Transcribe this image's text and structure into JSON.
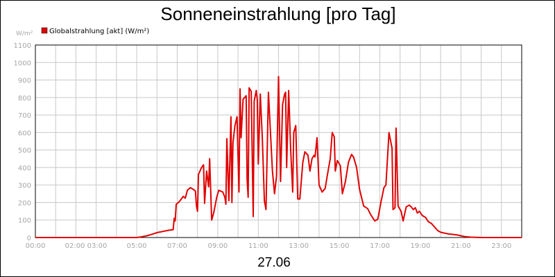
{
  "chart_data": {
    "type": "line",
    "title": "Sonneneinstrahlung [pro Tag]",
    "date_label": "27.06",
    "y_unit_label": "W/m²",
    "series": [
      {
        "name": "Globalstrahlung [akt] (W/m²)",
        "color": "#e00000",
        "points": [
          [
            0,
            0
          ],
          [
            5.0,
            0
          ],
          [
            5.2,
            3
          ],
          [
            5.5,
            10
          ],
          [
            5.8,
            20
          ],
          [
            6.0,
            28
          ],
          [
            6.3,
            35
          ],
          [
            6.6,
            42
          ],
          [
            6.8,
            45
          ],
          [
            6.85,
            110
          ],
          [
            6.9,
            95
          ],
          [
            6.95,
            190
          ],
          [
            7.1,
            205
          ],
          [
            7.3,
            235
          ],
          [
            7.4,
            225
          ],
          [
            7.5,
            270
          ],
          [
            7.65,
            285
          ],
          [
            7.8,
            275
          ],
          [
            7.9,
            265
          ],
          [
            7.95,
            180
          ],
          [
            8.0,
            150
          ],
          [
            8.05,
            360
          ],
          [
            8.2,
            400
          ],
          [
            8.3,
            415
          ],
          [
            8.35,
            195
          ],
          [
            8.45,
            380
          ],
          [
            8.55,
            290
          ],
          [
            8.6,
            450
          ],
          [
            8.7,
            100
          ],
          [
            8.8,
            140
          ],
          [
            8.95,
            230
          ],
          [
            9.05,
            270
          ],
          [
            9.25,
            260
          ],
          [
            9.35,
            230
          ],
          [
            9.4,
            190
          ],
          [
            9.45,
            565
          ],
          [
            9.55,
            210
          ],
          [
            9.65,
            690
          ],
          [
            9.7,
            200
          ],
          [
            9.75,
            540
          ],
          [
            9.85,
            640
          ],
          [
            9.95,
            690
          ],
          [
            10.05,
            260
          ],
          [
            10.1,
            850
          ],
          [
            10.15,
            570
          ],
          [
            10.25,
            790
          ],
          [
            10.4,
            810
          ],
          [
            10.45,
            330
          ],
          [
            10.5,
            230
          ],
          [
            10.55,
            855
          ],
          [
            10.65,
            835
          ],
          [
            10.75,
            120
          ],
          [
            10.8,
            780
          ],
          [
            10.9,
            840
          ],
          [
            10.95,
            790
          ],
          [
            11.0,
            420
          ],
          [
            11.1,
            820
          ],
          [
            11.2,
            570
          ],
          [
            11.3,
            210
          ],
          [
            11.38,
            160
          ],
          [
            11.5,
            830
          ],
          [
            11.7,
            380
          ],
          [
            11.8,
            250
          ],
          [
            11.9,
            350
          ],
          [
            12.0,
            920
          ],
          [
            12.1,
            320
          ],
          [
            12.2,
            760
          ],
          [
            12.3,
            820
          ],
          [
            12.35,
            830
          ],
          [
            12.4,
            400
          ],
          [
            12.5,
            840
          ],
          [
            12.6,
            500
          ],
          [
            12.7,
            260
          ],
          [
            12.75,
            600
          ],
          [
            12.85,
            640
          ],
          [
            12.95,
            220
          ],
          [
            13.05,
            220
          ],
          [
            13.2,
            430
          ],
          [
            13.3,
            490
          ],
          [
            13.45,
            470
          ],
          [
            13.55,
            380
          ],
          [
            13.65,
            450
          ],
          [
            13.75,
            470
          ],
          [
            13.8,
            460
          ],
          [
            13.9,
            570
          ],
          [
            14.0,
            300
          ],
          [
            14.15,
            260
          ],
          [
            14.3,
            280
          ],
          [
            14.4,
            350
          ],
          [
            14.55,
            450
          ],
          [
            14.65,
            600
          ],
          [
            14.75,
            575
          ],
          [
            14.8,
            380
          ],
          [
            14.9,
            440
          ],
          [
            15.05,
            410
          ],
          [
            15.15,
            250
          ],
          [
            15.3,
            320
          ],
          [
            15.45,
            430
          ],
          [
            15.6,
            475
          ],
          [
            15.7,
            460
          ],
          [
            15.85,
            400
          ],
          [
            16.0,
            275
          ],
          [
            16.2,
            180
          ],
          [
            16.4,
            165
          ],
          [
            16.55,
            130
          ],
          [
            16.75,
            95
          ],
          [
            16.9,
            105
          ],
          [
            17.05,
            200
          ],
          [
            17.2,
            285
          ],
          [
            17.3,
            300
          ],
          [
            17.45,
            600
          ],
          [
            17.6,
            510
          ],
          [
            17.65,
            160
          ],
          [
            17.75,
            170
          ],
          [
            17.8,
            625
          ],
          [
            17.9,
            180
          ],
          [
            18.05,
            150
          ],
          [
            18.15,
            95
          ],
          [
            18.3,
            175
          ],
          [
            18.45,
            185
          ],
          [
            18.55,
            175
          ],
          [
            18.65,
            160
          ],
          [
            18.75,
            170
          ],
          [
            18.85,
            140
          ],
          [
            18.95,
            150
          ],
          [
            19.1,
            125
          ],
          [
            19.25,
            115
          ],
          [
            19.4,
            90
          ],
          [
            19.55,
            80
          ],
          [
            19.7,
            60
          ],
          [
            19.85,
            40
          ],
          [
            20.0,
            30
          ],
          [
            20.2,
            25
          ],
          [
            20.4,
            20
          ],
          [
            20.6,
            18
          ],
          [
            20.8,
            15
          ],
          [
            21.0,
            10
          ],
          [
            21.2,
            5
          ],
          [
            21.5,
            2
          ],
          [
            22.0,
            0
          ],
          [
            24.0,
            0
          ]
        ]
      }
    ],
    "x_ticks": [
      {
        "h": 0,
        "label": "00:00"
      },
      {
        "h": 2.5,
        "label": "02:00 03:00"
      },
      {
        "h": 5,
        "label": "05:00"
      },
      {
        "h": 7,
        "label": "07:00"
      },
      {
        "h": 9,
        "label": "09:00"
      },
      {
        "h": 11,
        "label": "11:00"
      },
      {
        "h": 13,
        "label": "13:00"
      },
      {
        "h": 15,
        "label": "15:00"
      },
      {
        "h": 17,
        "label": "17:00"
      },
      {
        "h": 19,
        "label": "19:00"
      },
      {
        "h": 21,
        "label": "21:00"
      },
      {
        "h": 23,
        "label": "23:00"
      }
    ],
    "x_grid": [
      1,
      2,
      3,
      4,
      5,
      6,
      7,
      8,
      9,
      10,
      11,
      12,
      13,
      14,
      15,
      16,
      17,
      18,
      19,
      20,
      21,
      22,
      23,
      24
    ],
    "y_ticks": [
      0,
      100,
      200,
      300,
      400,
      500,
      600,
      700,
      800,
      900,
      1000,
      1100
    ],
    "xlim": [
      0,
      24
    ],
    "ylim": [
      0,
      1100
    ],
    "grid": true,
    "legend_position": "top-left"
  }
}
